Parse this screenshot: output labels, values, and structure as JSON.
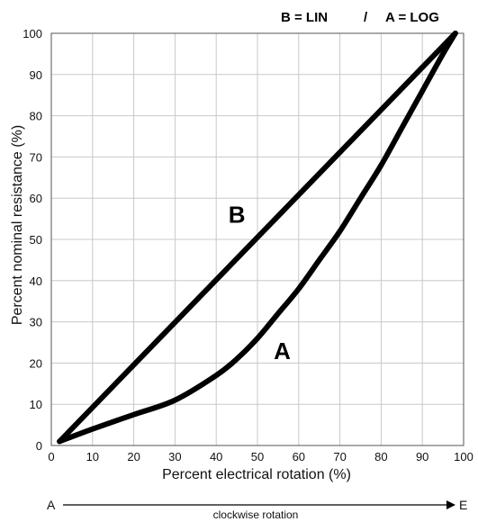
{
  "chart_data": {
    "type": "line",
    "legend_text": "B = LIN   /   A = LOG",
    "legend": {
      "lin": "B = LIN",
      "separator": "/",
      "log": "A = LOG"
    },
    "xlabel": "Percent electrical rotation (%)",
    "ylabel": "Percent nominal resistance (%)",
    "xlim": [
      0,
      100
    ],
    "ylim": [
      0,
      100
    ],
    "xticks": [
      0,
      10,
      20,
      30,
      40,
      50,
      60,
      70,
      80,
      90,
      100
    ],
    "yticks": [
      0,
      10,
      20,
      30,
      40,
      50,
      60,
      70,
      80,
      90,
      100
    ],
    "grid": true,
    "series": [
      {
        "name": "B",
        "points": [
          [
            2,
            1
          ],
          [
            98,
            100
          ]
        ],
        "label_at": [
          45,
          54
        ]
      },
      {
        "name": "A",
        "points": [
          [
            2,
            1
          ],
          [
            10,
            4
          ],
          [
            20,
            7.5
          ],
          [
            30,
            11
          ],
          [
            40,
            17
          ],
          [
            45,
            21
          ],
          [
            50,
            26
          ],
          [
            55,
            32
          ],
          [
            60,
            38
          ],
          [
            65,
            45
          ],
          [
            70,
            52
          ],
          [
            75,
            60
          ],
          [
            80,
            68
          ],
          [
            85,
            77
          ],
          [
            90,
            86
          ],
          [
            95,
            95
          ],
          [
            98,
            100
          ]
        ],
        "label_at": [
          56,
          21
        ]
      }
    ],
    "rotation_axis": {
      "start": "A",
      "end": "E",
      "label": "clockwise rotation"
    }
  }
}
